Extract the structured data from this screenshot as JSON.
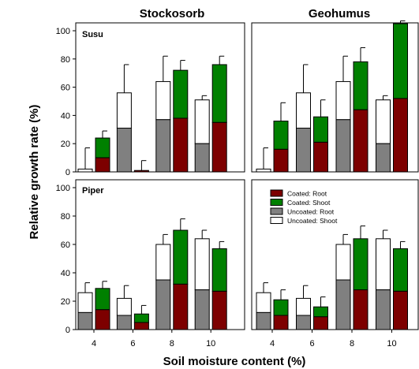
{
  "chart_data": {
    "type": "bar",
    "stacked": true,
    "columns": [
      "Stockosorb",
      "Geohumus"
    ],
    "rows": [
      "Susu",
      "Piper"
    ],
    "xlabel": "Soil moisture content (%)",
    "ylabel": "Relative growth rate (%)",
    "ylim": [
      0,
      100
    ],
    "categories": [
      "4",
      "6",
      "8",
      "10"
    ],
    "yticks": [
      0,
      20,
      40,
      60,
      80,
      100
    ],
    "groups": [
      "Uncoated",
      "Coated"
    ],
    "stack_order": [
      "Root",
      "Shoot"
    ],
    "legend": {
      "position": "top-left",
      "entries": [
        "Coated: Root",
        "Coated: Shoot",
        "Uncoated: Root",
        "Uncoated: Shoot"
      ]
    },
    "colors": {
      "Coated: Root": "#7d0000",
      "Coated: Shoot": "#008000",
      "Uncoated: Root": "#808080",
      "Uncoated: Shoot": "#ffffff"
    },
    "panels": [
      {
        "column": "Stockosorb",
        "row": "Susu",
        "label": "Susu",
        "uncoated": {
          "root": [
            0,
            31,
            37,
            20
          ],
          "total": [
            2,
            56,
            64,
            51
          ],
          "error": [
            17,
            76,
            82,
            54
          ]
        },
        "coated": {
          "root": [
            10,
            1,
            38,
            35
          ],
          "total": [
            24,
            1,
            72,
            76
          ],
          "error": [
            29,
            8,
            79,
            82
          ]
        }
      },
      {
        "column": "Geohumus",
        "row": "Susu",
        "label": "",
        "uncoated": {
          "root": [
            0,
            31,
            37,
            20
          ],
          "total": [
            2,
            56,
            64,
            51
          ],
          "error": [
            17,
            76,
            82,
            54
          ]
        },
        "coated": {
          "root": [
            16,
            21,
            44,
            52
          ],
          "total": [
            36,
            39,
            78,
            105
          ],
          "error": [
            49,
            51,
            88,
            107
          ]
        }
      },
      {
        "column": "Stockosorb",
        "row": "Piper",
        "label": "Piper",
        "uncoated": {
          "root": [
            12,
            10,
            35,
            28
          ],
          "total": [
            26,
            22,
            60,
            64
          ],
          "error": [
            33,
            31,
            67,
            70
          ]
        },
        "coated": {
          "root": [
            14,
            5,
            32,
            27
          ],
          "total": [
            29,
            11,
            70,
            57
          ],
          "error": [
            34,
            17,
            78,
            62
          ]
        }
      },
      {
        "column": "Geohumus",
        "row": "Piper",
        "label": "",
        "uncoated": {
          "root": [
            12,
            10,
            35,
            28
          ],
          "total": [
            26,
            22,
            60,
            64
          ],
          "error": [
            33,
            31,
            67,
            70
          ]
        },
        "coated": {
          "root": [
            10,
            9,
            28,
            27
          ],
          "total": [
            21,
            16,
            64,
            57
          ],
          "error": [
            28,
            23,
            73,
            62
          ]
        }
      }
    ]
  }
}
